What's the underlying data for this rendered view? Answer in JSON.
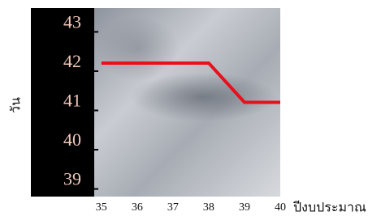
{
  "chart_data": {
    "type": "line",
    "xlabel": "ปีงบประมาณ",
    "ylabel": "วัน",
    "x": [
      35,
      38,
      39,
      40
    ],
    "series": [
      {
        "name": null,
        "color": "#e8101a",
        "values": [
          42,
          42,
          41,
          41
        ]
      }
    ],
    "xlim": [
      34.8,
      40
    ],
    "xticks": [
      35,
      36,
      37,
      38,
      39,
      40
    ],
    "ylim": [
      38.6,
      43.4
    ],
    "yticks": [
      39,
      40,
      41,
      42,
      43
    ]
  }
}
